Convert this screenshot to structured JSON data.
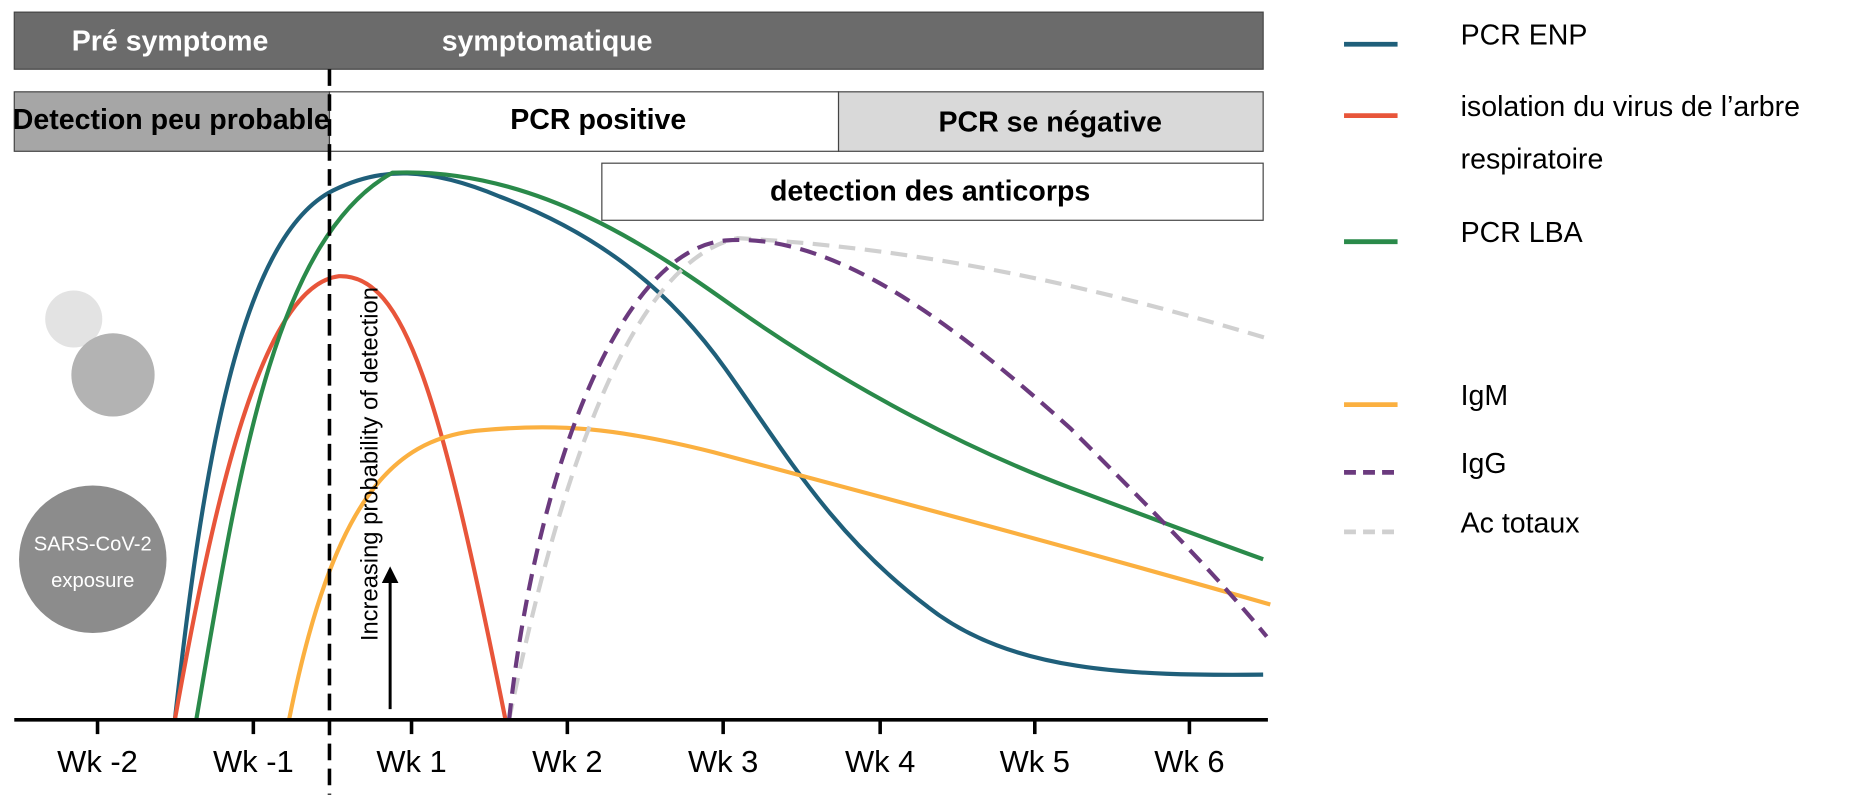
{
  "phases": {
    "pre": "Pré symptome",
    "symptomatic": "symptomatique"
  },
  "detection": {
    "unlikely": "Detection peu probable",
    "pcr_positive": "PCR positive",
    "pcr_negative": "PCR  se négative",
    "antibodies": "detection des anticorps"
  },
  "y_annotation": "Increasing probability of detection",
  "exposure": [
    "SARS-CoV-2",
    "exposure"
  ],
  "x_ticks": [
    "Wk -2",
    "Wk -1",
    "Wk 1",
    "Wk 2",
    "Wk 3",
    "Wk 4",
    "Wk 5",
    "Wk 6"
  ],
  "legend": [
    {
      "name": "PCR ENP",
      "color": "#1f5f7a",
      "dash": false
    },
    {
      "name": "isolation du virus de l’arbre",
      "name2": "respiratoire",
      "color": "#e8553a",
      "dash": false
    },
    {
      "name": "PCR LBA",
      "color": "#2a8a4a",
      "dash": false
    },
    {
      "name": "IgM",
      "color": "#fbb040",
      "dash": false
    },
    {
      "name": "IgG",
      "color": "#6b3a7e",
      "dash": true
    },
    {
      "name": "Ac totaux",
      "color": "#d0d0d0",
      "dash": true
    }
  ]
}
